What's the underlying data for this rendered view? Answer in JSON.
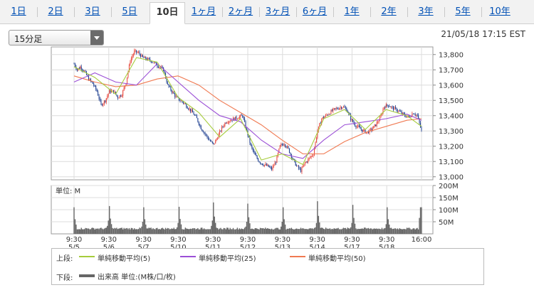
{
  "tabs": [
    {
      "label": "1日",
      "active": false
    },
    {
      "label": "2日",
      "active": false
    },
    {
      "label": "3日",
      "active": false
    },
    {
      "label": "5日",
      "active": false
    },
    {
      "label": "10日",
      "active": true
    },
    {
      "label": "1ヶ月",
      "active": false
    },
    {
      "label": "2ヶ月",
      "active": false
    },
    {
      "label": "3ヶ月",
      "active": false
    },
    {
      "label": "6ヶ月",
      "active": false
    },
    {
      "label": "1年",
      "active": false
    },
    {
      "label": "2年",
      "active": false
    },
    {
      "label": "3年",
      "active": false
    },
    {
      "label": "5年",
      "active": false
    },
    {
      "label": "10年",
      "active": false
    }
  ],
  "interval_select": {
    "value": "15分足"
  },
  "timestamp": "21/05/18 17:15 EST",
  "legend": {
    "upper_label": "上段:",
    "lower_label": "下段:",
    "ma5": "単純移動平均(5)",
    "ma25": "単純移動平均(25)",
    "ma50": "単純移動平均(50)",
    "volume": "出来高 単位:(M株/口/枚)"
  },
  "colors": {
    "up": "#e8473c",
    "down": "#1c3d8f",
    "ma5": "#a6cc3c",
    "ma25": "#9b4fd6",
    "ma50": "#f07a52",
    "volume": "#666666"
  },
  "chart_data": [
    {
      "type": "candlestick",
      "y_ticks": [
        "13,800",
        "13,700",
        "13,600",
        "13,500",
        "13,400",
        "13,300",
        "13,200",
        "13,100",
        "13,000"
      ],
      "ylim": [
        12980,
        13850
      ],
      "sessions": [
        "5/5",
        "5/6",
        "5/7",
        "5/10",
        "5/11",
        "5/12",
        "5/13",
        "5/14",
        "5/17",
        "5/18"
      ],
      "x_time_labels": [
        "9:30",
        "9:30",
        "9:30",
        "9:30",
        "9:30",
        "9:30",
        "9:30",
        "9:30",
        "9:30",
        "9:30",
        "16:00"
      ],
      "close_path": [
        [
          0,
          13740
        ],
        [
          3,
          13700
        ],
        [
          6,
          13720
        ],
        [
          10,
          13690
        ],
        [
          14,
          13640
        ],
        [
          18,
          13610
        ],
        [
          22,
          13560
        ],
        [
          26,
          13470
        ],
        [
          30,
          13500
        ],
        [
          34,
          13560
        ],
        [
          38,
          13560
        ],
        [
          42,
          13520
        ],
        [
          46,
          13540
        ],
        [
          50,
          13620
        ],
        [
          54,
          13760
        ],
        [
          58,
          13820
        ],
        [
          62,
          13810
        ],
        [
          66,
          13780
        ],
        [
          70,
          13770
        ],
        [
          74,
          13760
        ],
        [
          78,
          13740
        ],
        [
          82,
          13720
        ],
        [
          86,
          13700
        ],
        [
          90,
          13600
        ],
        [
          94,
          13560
        ],
        [
          98,
          13520
        ],
        [
          102,
          13500
        ],
        [
          106,
          13480
        ],
        [
          110,
          13450
        ],
        [
          114,
          13420
        ],
        [
          118,
          13380
        ],
        [
          122,
          13320
        ],
        [
          126,
          13280
        ],
        [
          130,
          13240
        ],
        [
          134,
          13210
        ],
        [
          138,
          13260
        ],
        [
          142,
          13320
        ],
        [
          146,
          13360
        ],
        [
          150,
          13370
        ],
        [
          154,
          13380
        ],
        [
          158,
          13390
        ],
        [
          162,
          13400
        ],
        [
          166,
          13300
        ],
        [
          170,
          13200
        ],
        [
          174,
          13140
        ],
        [
          178,
          13100
        ],
        [
          182,
          13080
        ],
        [
          186,
          13070
        ],
        [
          190,
          13050
        ],
        [
          194,
          13100
        ],
        [
          198,
          13200
        ],
        [
          202,
          13220
        ],
        [
          206,
          13180
        ],
        [
          210,
          13120
        ],
        [
          214,
          13070
        ],
        [
          218,
          13040
        ],
        [
          222,
          13090
        ],
        [
          226,
          13120
        ],
        [
          230,
          13150
        ],
        [
          234,
          13300
        ],
        [
          238,
          13380
        ],
        [
          242,
          13400
        ],
        [
          246,
          13420
        ],
        [
          250,
          13440
        ],
        [
          254,
          13450
        ],
        [
          258,
          13460
        ],
        [
          262,
          13440
        ],
        [
          266,
          13380
        ],
        [
          270,
          13340
        ],
        [
          274,
          13320
        ],
        [
          278,
          13300
        ],
        [
          282,
          13290
        ],
        [
          286,
          13310
        ],
        [
          290,
          13340
        ],
        [
          294,
          13380
        ],
        [
          298,
          13460
        ],
        [
          302,
          13470
        ],
        [
          306,
          13450
        ],
        [
          310,
          13440
        ],
        [
          314,
          13420
        ],
        [
          318,
          13400
        ],
        [
          322,
          13390
        ],
        [
          326,
          13420
        ],
        [
          330,
          13400
        ],
        [
          334,
          13300
        ]
      ],
      "ma5": [
        [
          0,
          13720
        ],
        [
          20,
          13650
        ],
        [
          40,
          13540
        ],
        [
          60,
          13780
        ],
        [
          80,
          13750
        ],
        [
          100,
          13520
        ],
        [
          120,
          13420
        ],
        [
          140,
          13260
        ],
        [
          160,
          13380
        ],
        [
          180,
          13110
        ],
        [
          200,
          13150
        ],
        [
          220,
          13080
        ],
        [
          240,
          13380
        ],
        [
          260,
          13440
        ],
        [
          280,
          13310
        ],
        [
          300,
          13440
        ],
        [
          320,
          13400
        ],
        [
          334,
          13330
        ]
      ],
      "ma25": [
        [
          0,
          13620
        ],
        [
          20,
          13680
        ],
        [
          40,
          13620
        ],
        [
          60,
          13600
        ],
        [
          80,
          13740
        ],
        [
          100,
          13620
        ],
        [
          120,
          13500
        ],
        [
          140,
          13400
        ],
        [
          160,
          13360
        ],
        [
          180,
          13240
        ],
        [
          200,
          13150
        ],
        [
          220,
          13120
        ],
        [
          240,
          13240
        ],
        [
          260,
          13340
        ],
        [
          280,
          13360
        ],
        [
          300,
          13380
        ],
        [
          320,
          13410
        ],
        [
          334,
          13370
        ]
      ],
      "ma50": [
        [
          0,
          13660
        ],
        [
          20,
          13620
        ],
        [
          40,
          13590
        ],
        [
          60,
          13600
        ],
        [
          80,
          13640
        ],
        [
          100,
          13660
        ],
        [
          120,
          13600
        ],
        [
          140,
          13500
        ],
        [
          160,
          13420
        ],
        [
          180,
          13340
        ],
        [
          200,
          13240
        ],
        [
          220,
          13150
        ],
        [
          240,
          13150
        ],
        [
          260,
          13230
        ],
        [
          280,
          13290
        ],
        [
          300,
          13330
        ],
        [
          320,
          13370
        ],
        [
          334,
          13380
        ]
      ]
    },
    {
      "type": "bar",
      "ylabel": "単位: M",
      "y_ticks": [
        "200M",
        "150M",
        "100M",
        "50M"
      ],
      "ylim": [
        0,
        200
      ],
      "session_peaks": [
        110,
        115,
        110,
        112,
        130,
        125,
        110,
        135,
        120,
        110
      ],
      "session_close": [
        55,
        50,
        45,
        55,
        50,
        50,
        45,
        45,
        40,
        110
      ],
      "base_level": 18
    }
  ]
}
